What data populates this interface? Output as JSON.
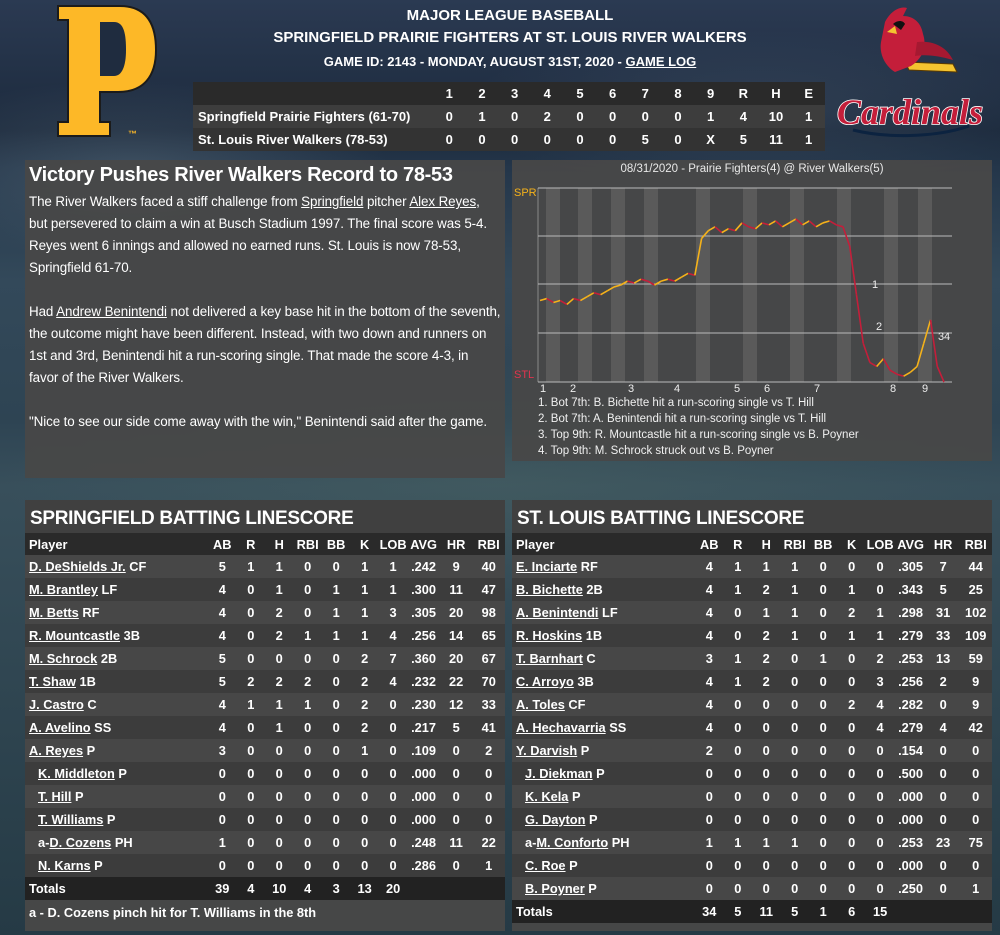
{
  "header": {
    "league": "MAJOR LEAGUE BASEBALL",
    "matchup": "SPRINGFIELD PRAIRIE FIGHTERS AT ST. LOUIS RIVER WALKERS",
    "game_info": "GAME ID: 2143 - MONDAY, AUGUST 31ST, 2020 - ",
    "game_log_link": "GAME LOG"
  },
  "logos": {
    "away_logo": "pirates-p-logo",
    "home_logo": "cardinals-logo"
  },
  "boxscore": {
    "headers": [
      "",
      "1",
      "2",
      "3",
      "4",
      "5",
      "6",
      "7",
      "8",
      "9",
      "R",
      "H",
      "E"
    ],
    "rows": [
      [
        "Springfield Prairie Fighters (61-70)",
        "0",
        "1",
        "0",
        "2",
        "0",
        "0",
        "0",
        "0",
        "1",
        "4",
        "10",
        "1"
      ],
      [
        "St. Louis River Walkers (78-53)",
        "0",
        "0",
        "0",
        "0",
        "0",
        "0",
        "5",
        "0",
        "X",
        "5",
        "11",
        "1"
      ]
    ]
  },
  "story": {
    "headline": "Victory Pushes River Walkers Record to 78-53",
    "p1_a": "The River Walkers faced a stiff challenge from ",
    "p1_link1": "Springfield",
    "p1_b": " pitcher ",
    "p1_link2": "Alex Reyes",
    "p1_c": ", but persevered to claim a win at Busch Stadium 1997. The final score was 5-4. Reyes went 6 innings and allowed no earned runs. St. Louis is now 78-53, Springfield 61-70.",
    "p2_a": "Had ",
    "p2_link": "Andrew Benintendi",
    "p2_b": " not delivered a key base hit in the bottom of the seventh, the outcome might have been different. Instead, with two down and runners on 1st and 3rd, Benintendi hit a run-scoring single. That made the score 4-3, in favor of the River Walkers.",
    "p3": "\"Nice to see our side come away with the win,\" Benintendi said after the game."
  },
  "win_prob": {
    "title": "08/31/2020 - Prairie Fighters(4) @ River Walkers(5)",
    "top_label": "SPR",
    "bottom_label": "STL",
    "innings": [
      "1",
      "2",
      "3",
      "4",
      "5",
      "6",
      "7",
      "8",
      "9"
    ],
    "markers": [
      "1",
      "2",
      "3",
      "4"
    ],
    "notes": [
      "1. Bot 7th: B. Bichette hit a run-scoring single vs T. Hill",
      "2. Bot 7th: A. Benintendi hit a run-scoring single vs T. Hill",
      "3. Top 9th: R. Mountcastle hit a run-scoring single vs B. Poyner",
      "4. Top 9th: M. Schrock struck out vs B. Poyner"
    ],
    "colors": {
      "spr": "#f5b21a",
      "stl": "#c41e3a"
    }
  },
  "springfield": {
    "title": "SPRINGFIELD BATTING LINESCORE",
    "headers": [
      "Player",
      "AB",
      "R",
      "H",
      "RBI",
      "BB",
      "K",
      "LOB",
      "AVG",
      "HR",
      "RBI"
    ],
    "players": [
      {
        "prefix": "",
        "name": "D. DeShields Jr.",
        "pos": " CF",
        "stats": [
          "5",
          "1",
          "1",
          "0",
          "0",
          "1",
          "1",
          ".242",
          "9",
          "40"
        ]
      },
      {
        "prefix": "",
        "name": "M. Brantley",
        "pos": " LF",
        "stats": [
          "4",
          "0",
          "1",
          "0",
          "1",
          "1",
          "1",
          ".300",
          "11",
          "47"
        ]
      },
      {
        "prefix": "",
        "name": "M. Betts",
        "pos": " RF",
        "stats": [
          "4",
          "0",
          "2",
          "0",
          "1",
          "1",
          "3",
          ".305",
          "20",
          "98"
        ]
      },
      {
        "prefix": "",
        "name": "R. Mountcastle",
        "pos": " 3B",
        "stats": [
          "4",
          "0",
          "2",
          "1",
          "1",
          "1",
          "4",
          ".256",
          "14",
          "65"
        ]
      },
      {
        "prefix": "",
        "name": "M. Schrock",
        "pos": " 2B",
        "stats": [
          "5",
          "0",
          "0",
          "0",
          "0",
          "2",
          "7",
          ".360",
          "20",
          "67"
        ]
      },
      {
        "prefix": "",
        "name": "T. Shaw",
        "pos": " 1B",
        "stats": [
          "5",
          "2",
          "2",
          "2",
          "0",
          "2",
          "4",
          ".232",
          "22",
          "70"
        ]
      },
      {
        "prefix": "",
        "name": "J. Castro",
        "pos": " C",
        "stats": [
          "4",
          "1",
          "1",
          "1",
          "0",
          "2",
          "0",
          ".230",
          "12",
          "33"
        ]
      },
      {
        "prefix": "",
        "name": "A. Avelino",
        "pos": " SS",
        "stats": [
          "4",
          "0",
          "1",
          "0",
          "0",
          "2",
          "0",
          ".217",
          "5",
          "41"
        ]
      },
      {
        "prefix": "",
        "name": "A. Reyes",
        "pos": " P",
        "stats": [
          "3",
          "0",
          "0",
          "0",
          "0",
          "1",
          "0",
          ".109",
          "0",
          "2"
        ]
      },
      {
        "prefix": "",
        "name": "K. Middleton",
        "pos": " P",
        "sub": true,
        "stats": [
          "0",
          "0",
          "0",
          "0",
          "0",
          "0",
          "0",
          ".000",
          "0",
          "0"
        ]
      },
      {
        "prefix": "",
        "name": "T. Hill",
        "pos": " P",
        "sub": true,
        "stats": [
          "0",
          "0",
          "0",
          "0",
          "0",
          "0",
          "0",
          ".000",
          "0",
          "0"
        ]
      },
      {
        "prefix": "",
        "name": "T. Williams",
        "pos": " P",
        "sub": true,
        "stats": [
          "0",
          "0",
          "0",
          "0",
          "0",
          "0",
          "0",
          ".000",
          "0",
          "0"
        ]
      },
      {
        "prefix": "a-",
        "name": "D. Cozens",
        "pos": " PH",
        "sub": true,
        "stats": [
          "1",
          "0",
          "0",
          "0",
          "0",
          "0",
          "0",
          ".248",
          "11",
          "22"
        ]
      },
      {
        "prefix": "",
        "name": "N. Karns",
        "pos": " P",
        "sub": true,
        "stats": [
          "0",
          "0",
          "0",
          "0",
          "0",
          "0",
          "0",
          ".286",
          "0",
          "1"
        ]
      }
    ],
    "totals_label": "Totals",
    "totals": [
      "39",
      "4",
      "10",
      "4",
      "3",
      "13",
      "20",
      "",
      "",
      ""
    ],
    "footnote": "a - D. Cozens pinch hit for T. Williams in the 8th"
  },
  "stlouis": {
    "title": "ST. LOUIS BATTING LINESCORE",
    "headers": [
      "Player",
      "AB",
      "R",
      "H",
      "RBI",
      "BB",
      "K",
      "LOB",
      "AVG",
      "HR",
      "RBI"
    ],
    "players": [
      {
        "prefix": "",
        "name": "E. Inciarte",
        "pos": " RF",
        "stats": [
          "4",
          "1",
          "1",
          "1",
          "0",
          "0",
          "0",
          ".305",
          "7",
          "44"
        ]
      },
      {
        "prefix": "",
        "name": "B. Bichette",
        "pos": " 2B",
        "stats": [
          "4",
          "1",
          "2",
          "1",
          "0",
          "1",
          "0",
          ".343",
          "5",
          "25"
        ]
      },
      {
        "prefix": "",
        "name": "A. Benintendi",
        "pos": " LF",
        "stats": [
          "4",
          "0",
          "1",
          "1",
          "0",
          "2",
          "1",
          ".298",
          "31",
          "102"
        ]
      },
      {
        "prefix": "",
        "name": "R. Hoskins",
        "pos": " 1B",
        "stats": [
          "4",
          "0",
          "2",
          "1",
          "0",
          "1",
          "1",
          ".279",
          "33",
          "109"
        ]
      },
      {
        "prefix": "",
        "name": "T. Barnhart",
        "pos": " C",
        "stats": [
          "3",
          "1",
          "2",
          "0",
          "1",
          "0",
          "2",
          ".253",
          "13",
          "59"
        ]
      },
      {
        "prefix": "",
        "name": "C. Arroyo",
        "pos": " 3B",
        "stats": [
          "4",
          "1",
          "2",
          "0",
          "0",
          "0",
          "3",
          ".256",
          "2",
          "9"
        ]
      },
      {
        "prefix": "",
        "name": "A. Toles",
        "pos": " CF",
        "stats": [
          "4",
          "0",
          "0",
          "0",
          "0",
          "2",
          "4",
          ".282",
          "0",
          "9"
        ]
      },
      {
        "prefix": "",
        "name": "A. Hechavarria",
        "pos": " SS",
        "stats": [
          "4",
          "0",
          "0",
          "0",
          "0",
          "0",
          "4",
          ".279",
          "4",
          "42"
        ]
      },
      {
        "prefix": "",
        "name": "Y. Darvish",
        "pos": " P",
        "stats": [
          "2",
          "0",
          "0",
          "0",
          "0",
          "0",
          "0",
          ".154",
          "0",
          "0"
        ]
      },
      {
        "prefix": "",
        "name": "J. Diekman",
        "pos": " P",
        "sub": true,
        "stats": [
          "0",
          "0",
          "0",
          "0",
          "0",
          "0",
          "0",
          ".500",
          "0",
          "0"
        ]
      },
      {
        "prefix": "",
        "name": "K. Kela",
        "pos": " P",
        "sub": true,
        "stats": [
          "0",
          "0",
          "0",
          "0",
          "0",
          "0",
          "0",
          ".000",
          "0",
          "0"
        ]
      },
      {
        "prefix": "",
        "name": "G. Dayton",
        "pos": " P",
        "sub": true,
        "stats": [
          "0",
          "0",
          "0",
          "0",
          "0",
          "0",
          "0",
          ".000",
          "0",
          "0"
        ]
      },
      {
        "prefix": "a-",
        "name": "M. Conforto",
        "pos": " PH",
        "sub": true,
        "stats": [
          "1",
          "1",
          "1",
          "1",
          "0",
          "0",
          "0",
          ".253",
          "23",
          "75"
        ]
      },
      {
        "prefix": "",
        "name": "C. Roe",
        "pos": " P",
        "sub": true,
        "stats": [
          "0",
          "0",
          "0",
          "0",
          "0",
          "0",
          "0",
          ".000",
          "0",
          "0"
        ]
      },
      {
        "prefix": "",
        "name": "B. Poyner",
        "pos": " P",
        "sub": true,
        "stats": [
          "0",
          "0",
          "0",
          "0",
          "0",
          "0",
          "0",
          ".250",
          "0",
          "1"
        ]
      }
    ],
    "totals_label": "Totals",
    "totals": [
      "34",
      "5",
      "11",
      "5",
      "1",
      "6",
      "15",
      "",
      "",
      ""
    ]
  }
}
